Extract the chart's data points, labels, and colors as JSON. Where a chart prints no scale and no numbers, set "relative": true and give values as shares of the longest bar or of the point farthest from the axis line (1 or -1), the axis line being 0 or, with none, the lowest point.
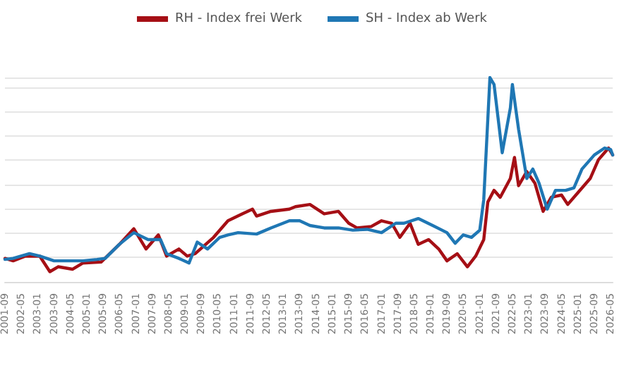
{
  "chart_data": {
    "type": "line",
    "relative": true,
    "grid": "y",
    "legend": "top",
    "marker": "none",
    "line_style": "solid",
    "xlim": [
      "2001-09",
      "2026-06"
    ],
    "xticks": [
      "2001-09",
      "2002-05",
      "2003-01",
      "2003-09",
      "2004-05",
      "2005-01",
      "2005-09",
      "2006-05",
      "2007-01",
      "2007-09",
      "2008-05",
      "2009-01",
      "2009-09",
      "2010-05",
      "2011-01",
      "2011-09",
      "2012-05",
      "2013-01",
      "2013-09",
      "2014-05",
      "2015-01",
      "2015-09",
      "2016-05",
      "2017-01",
      "2017-09",
      "2018-05",
      "2019-01",
      "2019-09",
      "2020-05",
      "2021-01",
      "2021-09",
      "2022-05",
      "2023-01",
      "2023-09",
      "2024-05",
      "2025-01",
      "2025-09",
      "2026-05"
    ],
    "series": [
      {
        "name": "RH - Index frei Werk",
        "color": "#a50f15",
        "x": [
          "2001-09",
          "2002-01",
          "2002-07",
          "2003-02",
          "2003-07",
          "2003-11",
          "2004-06",
          "2004-11",
          "2005-08",
          "2005-11",
          "2006-05",
          "2006-12",
          "2007-06",
          "2007-12",
          "2008-04",
          "2008-10",
          "2009-02",
          "2009-06",
          "2010-03",
          "2010-10",
          "2011-05",
          "2011-10",
          "2011-12",
          "2012-07",
          "2013-04",
          "2013-07",
          "2014-02",
          "2014-09",
          "2015-04",
          "2015-09",
          "2016-01",
          "2016-08",
          "2017-01",
          "2017-06",
          "2017-10",
          "2018-03",
          "2018-07",
          "2018-12",
          "2019-05",
          "2019-09",
          "2020-02",
          "2020-07",
          "2020-11",
          "2021-03",
          "2021-05",
          "2021-08",
          "2021-11",
          "2022-04",
          "2022-06",
          "2022-08",
          "2022-12",
          "2023-04",
          "2023-08",
          "2023-12",
          "2024-05",
          "2024-08",
          "2025-01",
          "2025-07",
          "2025-11",
          "2026-04",
          "2026-06"
        ],
        "values": [
          0.115,
          0.103,
          0.126,
          0.126,
          0.05,
          0.074,
          0.062,
          0.092,
          0.097,
          0.126,
          0.184,
          0.26,
          0.161,
          0.23,
          0.126,
          0.161,
          0.126,
          0.138,
          0.218,
          0.299,
          0.333,
          0.356,
          0.322,
          0.345,
          0.356,
          0.368,
          0.379,
          0.333,
          0.345,
          0.287,
          0.264,
          0.271,
          0.299,
          0.287,
          0.218,
          0.287,
          0.184,
          0.207,
          0.161,
          0.103,
          0.138,
          0.074,
          0.126,
          0.207,
          0.391,
          0.448,
          0.414,
          0.506,
          0.609,
          0.471,
          0.54,
          0.483,
          0.345,
          0.414,
          0.425,
          0.379,
          0.437,
          0.506,
          0.598,
          0.655,
          0.621
        ]
      },
      {
        "name": "SH - Index ab Werk",
        "color": "#1f77b4",
        "x": [
          "2001-09",
          "2002-01",
          "2002-09",
          "2003-02",
          "2003-09",
          "2004-04",
          "2004-11",
          "2005-06",
          "2005-10",
          "2006-05",
          "2006-12",
          "2007-07",
          "2008-01",
          "2008-04",
          "2008-10",
          "2009-03",
          "2009-07",
          "2009-12",
          "2010-06",
          "2010-10",
          "2011-03",
          "2011-12",
          "2012-07",
          "2013-04",
          "2013-09",
          "2014-02",
          "2014-09",
          "2015-04",
          "2015-11",
          "2016-06",
          "2017-01",
          "2017-08",
          "2017-12",
          "2018-07",
          "2019-02",
          "2019-09",
          "2020-01",
          "2020-05",
          "2020-09",
          "2021-01",
          "2021-03",
          "2021-06",
          "2021-08",
          "2021-12",
          "2022-04",
          "2022-05",
          "2022-08",
          "2022-12",
          "2023-03",
          "2023-06",
          "2023-10",
          "2024-02",
          "2024-07",
          "2024-11",
          "2025-03",
          "2025-09",
          "2026-02",
          "2026-05",
          "2026-06"
        ],
        "values": [
          0.11,
          0.115,
          0.138,
          0.126,
          0.103,
          0.103,
          0.103,
          0.11,
          0.115,
          0.184,
          0.241,
          0.207,
          0.207,
          0.138,
          0.115,
          0.092,
          0.195,
          0.161,
          0.218,
          0.23,
          0.241,
          0.234,
          0.264,
          0.299,
          0.299,
          0.276,
          0.264,
          0.264,
          0.253,
          0.257,
          0.241,
          0.287,
          0.287,
          0.31,
          0.276,
          0.241,
          0.189,
          0.23,
          0.218,
          0.253,
          0.402,
          1.0,
          0.966,
          0.632,
          0.851,
          0.966,
          0.747,
          0.506,
          0.552,
          0.483,
          0.356,
          0.448,
          0.448,
          0.46,
          0.552,
          0.621,
          0.655,
          0.648,
          0.621
        ]
      }
    ]
  }
}
